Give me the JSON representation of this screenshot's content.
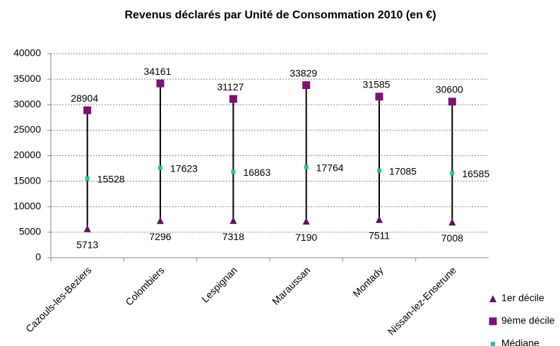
{
  "chart_data": {
    "type": "hilo",
    "title": "Revenus déclarés par Unité de Consommation 2010 (en €)",
    "categories": [
      "Cazouls-les-Beziers",
      "Colombiers",
      "Lespignan",
      "Maraussan",
      "Montady",
      "Nissan-lez-Enserune"
    ],
    "series": [
      {
        "name": "1er décile",
        "color": "#5a1558",
        "marker": "triangle",
        "values": [
          5713,
          7296,
          7318,
          7190,
          7511,
          7008
        ]
      },
      {
        "name": "9ème décile",
        "color": "#7a1470",
        "marker": "square",
        "values": [
          28904,
          34161,
          31127,
          33829,
          31585,
          30600
        ]
      },
      {
        "name": "Médiane",
        "color": "#2cc49a",
        "marker": "small-square",
        "values": [
          15528,
          17623,
          16863,
          17764,
          17085,
          16585
        ]
      }
    ],
    "ylim": [
      0,
      40000
    ],
    "yticks": [
      0,
      5000,
      10000,
      15000,
      20000,
      25000,
      30000,
      35000,
      40000
    ],
    "grid": true,
    "legend": "bottom-right"
  }
}
